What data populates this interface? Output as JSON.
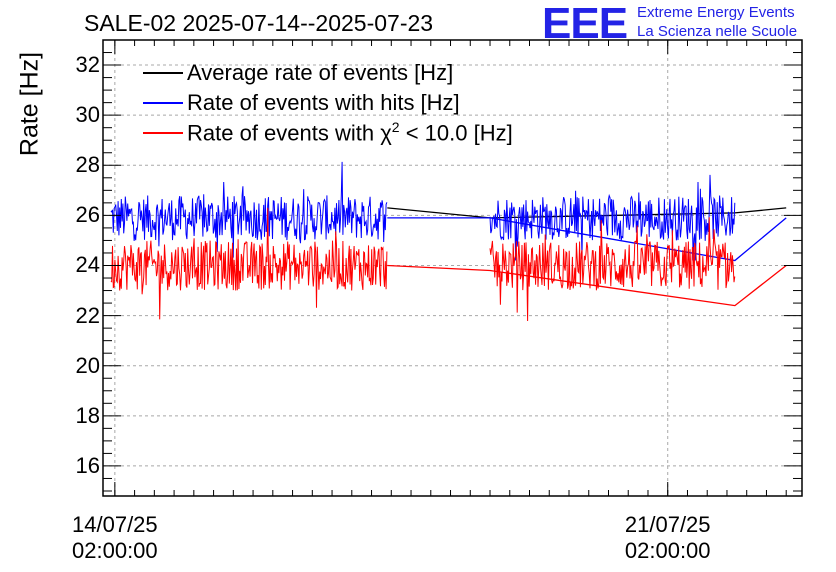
{
  "title": "SALE-02 2025-07-14--2025-07-23",
  "logo": {
    "mark": "EEE",
    "line1": "Extreme Energy Events",
    "line2": "La Scienza nelle Scuole",
    "color": "#2323e6"
  },
  "legend": [
    {
      "label": "Average rate of events [Hz]",
      "color": "#000000"
    },
    {
      "label": "Rate of events with hits [Hz]",
      "color": "#0000ff"
    },
    {
      "label_prefix": "Rate of events with ",
      "label_chi": "χ",
      "label_sup": "2",
      "label_suffix": " < 10.0 [Hz]",
      "color": "#ff0000"
    }
  ],
  "chart_data": {
    "type": "line",
    "title": "SALE-02 2025-07-14--2025-07-23",
    "ylabel": "Rate [Hz]",
    "xlabel": "",
    "ylim": [
      14.8,
      33.0
    ],
    "xlim_days": [
      -0.15,
      8.7
    ],
    "yticks": [
      16,
      18,
      20,
      22,
      24,
      26,
      28,
      30,
      32
    ],
    "ytick_labels": [
      "16",
      "18",
      "20",
      "22",
      "24",
      "26",
      "28",
      "30",
      "32"
    ],
    "xticks": [
      {
        "day": 0,
        "line1": "14/07/25",
        "line2": "02:00:00"
      },
      {
        "day": 7,
        "line1": "21/07/25",
        "line2": "02:00:00"
      }
    ],
    "grid": true,
    "data_segments_days": [
      [
        -0.05,
        3.45
      ],
      [
        4.75,
        7.85
      ],
      [
        8.5,
        9.8
      ]
    ],
    "series": [
      {
        "name": "Average rate of events [Hz]",
        "color": "#000000",
        "points": [
          [
            -0.05,
            26.1
          ],
          [
            3.45,
            26.3
          ],
          [
            4.75,
            25.9
          ],
          [
            7.85,
            26.1
          ],
          [
            8.5,
            26.3
          ],
          [
            9.8,
            26.2
          ]
        ]
      },
      {
        "name": "Rate of events with hits [Hz]",
        "mean": 25.9,
        "noise_band": [
          24.2,
          28.5
        ],
        "color": "#0000ff",
        "points": [
          [
            3.45,
            25.9
          ],
          [
            4.75,
            25.9
          ],
          [
            7.85,
            24.2
          ],
          [
            8.5,
            25.9
          ]
        ]
      },
      {
        "name": "Rate of events with chi2 < 10.0 [Hz]",
        "mean": 24.0,
        "noise_band": [
          20.8,
          26.3
        ],
        "color": "#ff0000",
        "points": [
          [
            3.45,
            24.0
          ],
          [
            4.75,
            23.8
          ],
          [
            7.85,
            22.4
          ],
          [
            8.5,
            24.0
          ]
        ]
      }
    ]
  }
}
